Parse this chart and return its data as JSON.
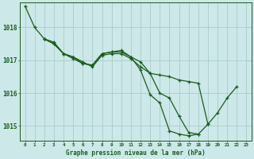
{
  "title": "Graphe pression niveau de la mer (hPa)",
  "background_color": "#cce8e8",
  "line_color": "#1a5c1a",
  "grid_color": "#aacccc",
  "text_color": "#1a5c1a",
  "xlim": [
    -0.5,
    23.5
  ],
  "ylim": [
    1014.55,
    1018.75
  ],
  "yticks": [
    1015,
    1016,
    1017,
    1018
  ],
  "xticks": [
    0,
    1,
    2,
    3,
    4,
    5,
    6,
    7,
    8,
    9,
    10,
    11,
    12,
    13,
    14,
    15,
    16,
    17,
    18,
    19,
    20,
    21,
    22,
    23
  ],
  "series": [
    {
      "x": [
        0,
        1,
        2,
        3,
        4,
        5,
        6,
        7,
        8,
        9,
        10,
        11,
        12,
        13,
        14,
        15,
        16,
        17,
        18,
        19,
        20,
        21,
        22
      ],
      "y": [
        1018.65,
        1018.0,
        1017.65,
        1017.5,
        1017.2,
        1017.05,
        1016.9,
        1016.85,
        1017.2,
        1017.25,
        1017.25,
        1017.1,
        1016.95,
        1016.6,
        1016.0,
        1015.85,
        1015.3,
        1014.8,
        1014.75,
        1015.05,
        1015.4,
        1015.85,
        1016.2
      ]
    },
    {
      "x": [
        2,
        3,
        4,
        5,
        6,
        7,
        8,
        9,
        10,
        11,
        12,
        13,
        14,
        15,
        16,
        17,
        18,
        19
      ],
      "y": [
        1017.65,
        1017.55,
        1017.2,
        1017.1,
        1016.95,
        1016.8,
        1017.15,
        1017.2,
        1017.2,
        1017.05,
        1016.8,
        1016.6,
        1016.55,
        1016.5,
        1016.4,
        1016.35,
        1016.3,
        1015.05
      ]
    },
    {
      "x": [
        2,
        3,
        4,
        5,
        6,
        7,
        8,
        9,
        10,
        11,
        12,
        13,
        14,
        15,
        16,
        17,
        18
      ],
      "y": [
        1017.65,
        1017.5,
        1017.2,
        1017.1,
        1016.9,
        1016.85,
        1017.2,
        1017.25,
        1017.3,
        1017.1,
        1016.7,
        1015.95,
        1015.7,
        1014.85,
        1014.75,
        1014.7,
        1014.75
      ]
    }
  ]
}
